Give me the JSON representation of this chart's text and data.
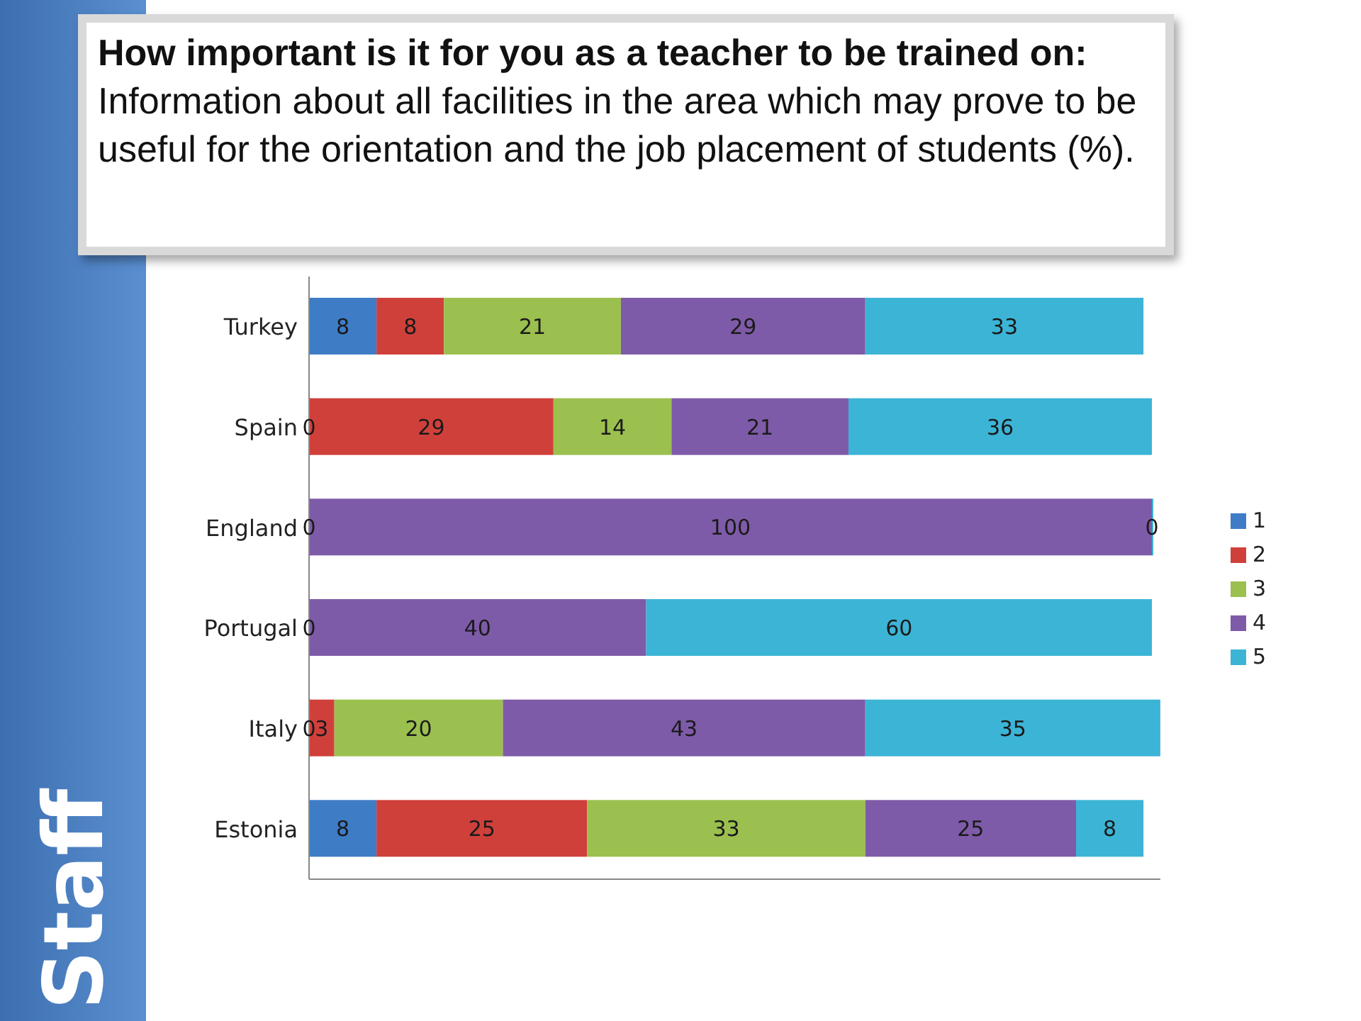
{
  "chart_data": {
    "type": "bar",
    "orientation": "horizontal",
    "stacked": true,
    "title": "How important is it for you as a teacher to be trained on:",
    "subtitle": "Information about all facilities in the area which may prove to be useful for the orientation and the job placement of students (%).",
    "annotations": [
      "Staff"
    ],
    "categories": [
      "Turkey",
      "Spain",
      "England",
      "Portugal",
      "Italy",
      "Estonia"
    ],
    "series": [
      {
        "name": "1",
        "color": "#3e7cc6",
        "values": [
          8,
          0,
          0,
          0,
          0,
          8
        ]
      },
      {
        "name": "2",
        "color": "#d0403b",
        "values": [
          8,
          29,
          null,
          null,
          3,
          25
        ]
      },
      {
        "name": "3",
        "color": "#9bc04f",
        "values": [
          21,
          14,
          null,
          null,
          20,
          33
        ]
      },
      {
        "name": "4",
        "color": "#7e5ba8",
        "values": [
          29,
          21,
          100,
          40,
          43,
          25
        ]
      },
      {
        "name": "5",
        "color": "#3cb4d6",
        "values": [
          33,
          36,
          0,
          60,
          35,
          8
        ]
      }
    ],
    "xlim": [
      0,
      101
    ],
    "tick_labels": "y",
    "data_labels": true,
    "legend": "right"
  }
}
